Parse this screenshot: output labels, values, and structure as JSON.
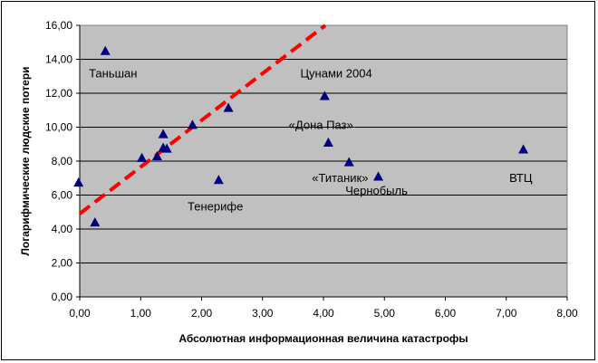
{
  "chart_data": {
    "type": "scatter",
    "title": "",
    "xlabel": "Абсолютная информационная величина катастрофы",
    "ylabel": "Логарифмические людские потери",
    "xlim": [
      0,
      8
    ],
    "ylim": [
      0,
      16
    ],
    "x_ticks": [
      "0,00",
      "1,00",
      "2,00",
      "3,00",
      "4,00",
      "5,00",
      "6,00",
      "7,00",
      "8,00"
    ],
    "y_ticks": [
      "0,00",
      "2,00",
      "4,00",
      "6,00",
      "8,00",
      "10,00",
      "12,00",
      "14,00",
      "16,00"
    ],
    "grid": "horizontal",
    "colors": {
      "plot_bg": "#c0c0c0",
      "marker": "#000080",
      "trend": "#ff0000",
      "grid": "#000000"
    },
    "points": [
      {
        "x": 0.42,
        "y": 14.5
      },
      {
        "x": -0.02,
        "y": 6.75
      },
      {
        "x": 0.25,
        "y": 4.4
      },
      {
        "x": 1.02,
        "y": 8.2
      },
      {
        "x": 1.27,
        "y": 8.3
      },
      {
        "x": 1.37,
        "y": 8.8
      },
      {
        "x": 1.37,
        "y": 9.6
      },
      {
        "x": 1.43,
        "y": 8.75
      },
      {
        "x": 1.85,
        "y": 10.15
      },
      {
        "x": 2.28,
        "y": 6.9
      },
      {
        "x": 2.44,
        "y": 11.15
      },
      {
        "x": 4.02,
        "y": 11.85
      },
      {
        "x": 4.08,
        "y": 9.1
      },
      {
        "x": 4.42,
        "y": 7.95
      },
      {
        "x": 4.9,
        "y": 7.1
      },
      {
        "x": 7.28,
        "y": 8.7
      }
    ],
    "trendline": {
      "x": [
        0,
        4.03
      ],
      "y": [
        4.9,
        16.0
      ],
      "style": "dashed"
    },
    "annotations": [
      {
        "text": "Таньшан",
        "x": 0.15,
        "y": 13.2
      },
      {
        "text": "Цунами 2004",
        "x": 3.62,
        "y": 13.2
      },
      {
        "text": "«Дона Паз»",
        "x": 3.43,
        "y": 10.15
      },
      {
        "text": "«Титаник»",
        "x": 3.81,
        "y": 7.05
      },
      {
        "text": "Тенерифе",
        "x": 1.77,
        "y": 5.35
      },
      {
        "text": "Чернобыль",
        "x": 4.36,
        "y": 6.3
      },
      {
        "text": "ВТЦ",
        "x": 7.05,
        "y": 7.05
      }
    ]
  }
}
